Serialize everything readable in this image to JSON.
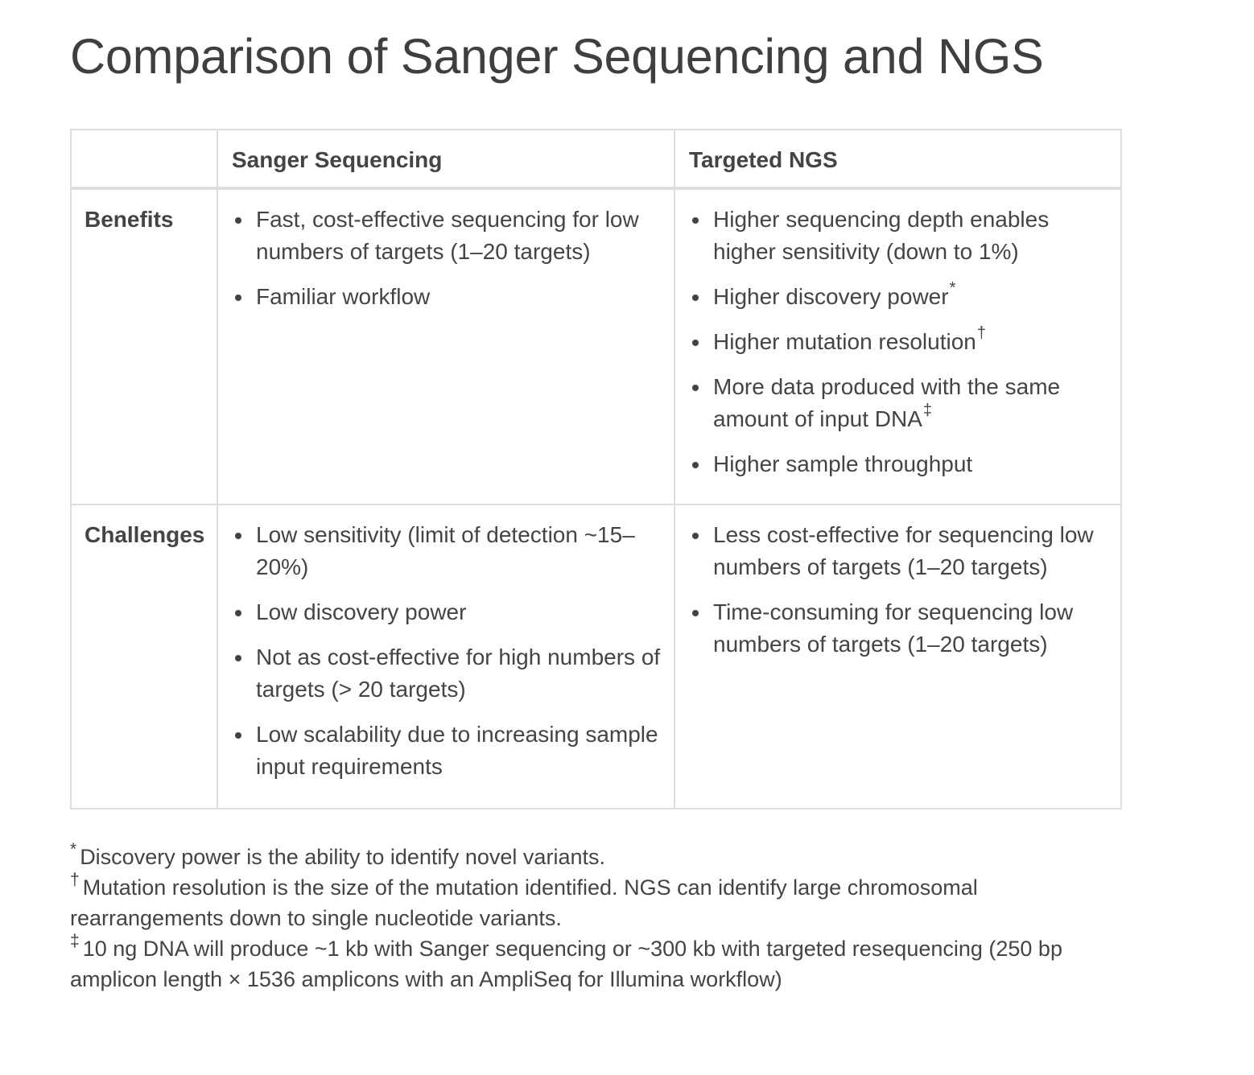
{
  "title": "Comparison of Sanger Sequencing and NGS",
  "table": {
    "headers": [
      "",
      "Sanger Sequencing",
      "Targeted NGS"
    ],
    "rows": [
      {
        "label": "Benefits",
        "sanger": [
          {
            "text": "Fast, cost-effective sequencing for low numbers of targets (1–20 targets)",
            "mark": ""
          },
          {
            "text": "Familiar workflow",
            "mark": ""
          }
        ],
        "ngs": [
          {
            "text": "Higher sequencing depth enables higher sensitivity (down to 1%)",
            "mark": ""
          },
          {
            "text": "Higher discovery power",
            "mark": "*"
          },
          {
            "text": "Higher mutation resolution",
            "mark": "†"
          },
          {
            "text": "More data produced with the same amount of input DNA",
            "mark": "‡"
          },
          {
            "text": "Higher sample throughput",
            "mark": ""
          }
        ]
      },
      {
        "label": "Challenges",
        "sanger": [
          {
            "text": "Low sensitivity (limit of detection ~15–20%)",
            "mark": ""
          },
          {
            "text": "Low discovery power",
            "mark": ""
          },
          {
            "text": "Not as cost-effective for high numbers of targets (> 20 targets)",
            "mark": ""
          },
          {
            "text": "Low scalability due to increasing sample input requirements",
            "mark": ""
          }
        ],
        "ngs": [
          {
            "text": "Less cost-effective for sequencing low numbers of targets (1–20 targets)",
            "mark": ""
          },
          {
            "text": "Time-consuming for sequencing low numbers of targets (1–20 targets)",
            "mark": ""
          }
        ]
      }
    ]
  },
  "footnotes": [
    {
      "mark": "*",
      "text": "Discovery power is the ability to identify novel variants."
    },
    {
      "mark": "†",
      "text": "Mutation resolution is the size of the mutation identified. NGS can identify large chromosomal rearrangements down to single nucleotide variants."
    },
    {
      "mark": "‡",
      "text": "10 ng DNA will produce ~1 kb with Sanger sequencing or ~300 kb with targeted resequencing (250 bp amplicon length × 1536 amplicons with an AmpliSeq for Illumina workflow)"
    }
  ]
}
